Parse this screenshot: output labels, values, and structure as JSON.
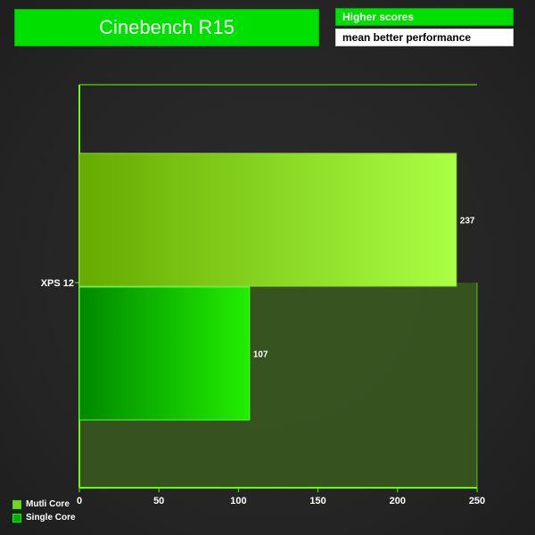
{
  "header": {
    "title": "Cinebench R15",
    "note_line1": "Higher scores",
    "note_line2": "mean better performance"
  },
  "colors": {
    "accent_green": "#00e000",
    "multi_core_light": "#aaff44",
    "multi_core_dark": "#66aa00",
    "single_core_light": "#22ee00",
    "single_core_dark": "#008800",
    "axis_line": "#66ff00",
    "plot_fill": "#3a5a1e"
  },
  "chart_data": {
    "type": "bar",
    "orientation": "horizontal",
    "title": "Cinebench R15",
    "categories": [
      "XPS 12"
    ],
    "series": [
      {
        "name": "Mutli Core",
        "values": [
          237
        ]
      },
      {
        "name": "Single Core",
        "values": [
          107
        ]
      }
    ],
    "xlabel": "",
    "ylabel": "",
    "xlim": [
      0,
      250
    ],
    "xticks": [
      0,
      50,
      100,
      150,
      200,
      250
    ],
    "data_labels": [
      "237",
      "107"
    ],
    "legend_position": "bottom-left",
    "grid": false
  }
}
